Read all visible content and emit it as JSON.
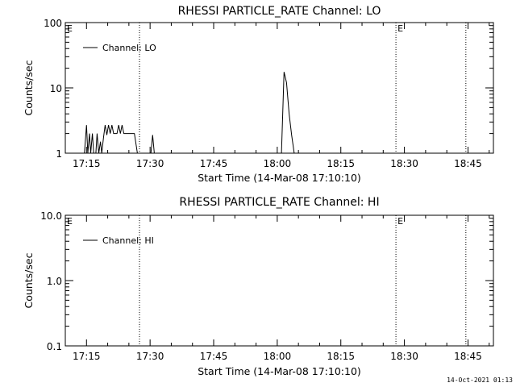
{
  "footer": {
    "stamp": "14-Oct-2021 01:13"
  },
  "chart_data": [
    {
      "type": "line",
      "title": "RHESSI PARTICLE_RATE Channel: LO",
      "xlabel": "Start Time (14-Mar-08 17:10:10)",
      "ylabel": "Counts/sec",
      "xlim": [
        "17:10",
        "18:51"
      ],
      "ylim": [
        1,
        100
      ],
      "yscale": "log",
      "x_ticks": [
        "17:15",
        "17:30",
        "17:45",
        "18:00",
        "18:15",
        "18:30",
        "18:45"
      ],
      "y_ticks": [
        "1",
        "10",
        "100"
      ],
      "grid": false,
      "legend": "top-left",
      "markers": [
        {
          "time": "17:27.5",
          "label": ""
        },
        {
          "time": "18:28.0",
          "label": "E"
        },
        {
          "time": "18:44.5",
          "label": ""
        }
      ],
      "corner_mark": "E",
      "series": [
        {
          "name": "Channel: LO",
          "points": [
            [
              "17:14.5",
              1
            ],
            [
              "17:15.0",
              2.7
            ],
            [
              "17:15.3",
              1
            ],
            [
              "17:15.7",
              2
            ],
            [
              "17:16.0",
              1
            ],
            [
              "17:16.4",
              2
            ],
            [
              "17:16.7",
              1
            ],
            [
              "17:17.2",
              1
            ],
            [
              "17:17.5",
              2
            ],
            [
              "17:17.9",
              1
            ],
            [
              "17:18.3",
              1.5
            ],
            [
              "17:18.6",
              1
            ],
            [
              "17:19.0",
              1.7
            ],
            [
              "17:19.4",
              2.7
            ],
            [
              "17:19.8",
              1.9
            ],
            [
              "17:20.2",
              2.7
            ],
            [
              "17:20.6",
              2
            ],
            [
              "17:21.0",
              2.7
            ],
            [
              "17:21.4",
              2
            ],
            [
              "17:22.2",
              2
            ],
            [
              "17:22.6",
              2.7
            ],
            [
              "17:23.0",
              2
            ],
            [
              "17:23.4",
              2.7
            ],
            [
              "17:23.8",
              2
            ],
            [
              "17:26.3",
              2
            ],
            [
              "17:27.0",
              1
            ],
            [
              "17:30.2",
              1
            ],
            [
              "17:30.6",
              1.9
            ],
            [
              "17:31.0",
              1
            ],
            [
              "18:01.0",
              1
            ],
            [
              "18:01.6",
              17.5
            ],
            [
              "18:02.2",
              12
            ],
            [
              "18:02.8",
              4
            ],
            [
              "18:03.4",
              1.9
            ],
            [
              "18:04.0",
              1
            ],
            [
              "18:04.5",
              1
            ]
          ]
        }
      ]
    },
    {
      "type": "line",
      "title": "RHESSI PARTICLE_RATE Channel: HI",
      "xlabel": "Start Time (14-Mar-08 17:10:10)",
      "ylabel": "Counts/sec",
      "xlim": [
        "17:10",
        "18:51"
      ],
      "ylim": [
        0.1,
        10
      ],
      "yscale": "log",
      "x_ticks": [
        "17:15",
        "17:30",
        "17:45",
        "18:00",
        "18:15",
        "18:30",
        "18:45"
      ],
      "y_ticks": [
        "0.1",
        "1.0",
        "10.0"
      ],
      "grid": false,
      "legend": "top-left",
      "markers": [
        {
          "time": "17:27.5",
          "label": ""
        },
        {
          "time": "18:28.0",
          "label": "E"
        },
        {
          "time": "18:44.5",
          "label": ""
        }
      ],
      "corner_mark": "E",
      "series": [
        {
          "name": "Channel: HI",
          "points": []
        }
      ]
    }
  ]
}
